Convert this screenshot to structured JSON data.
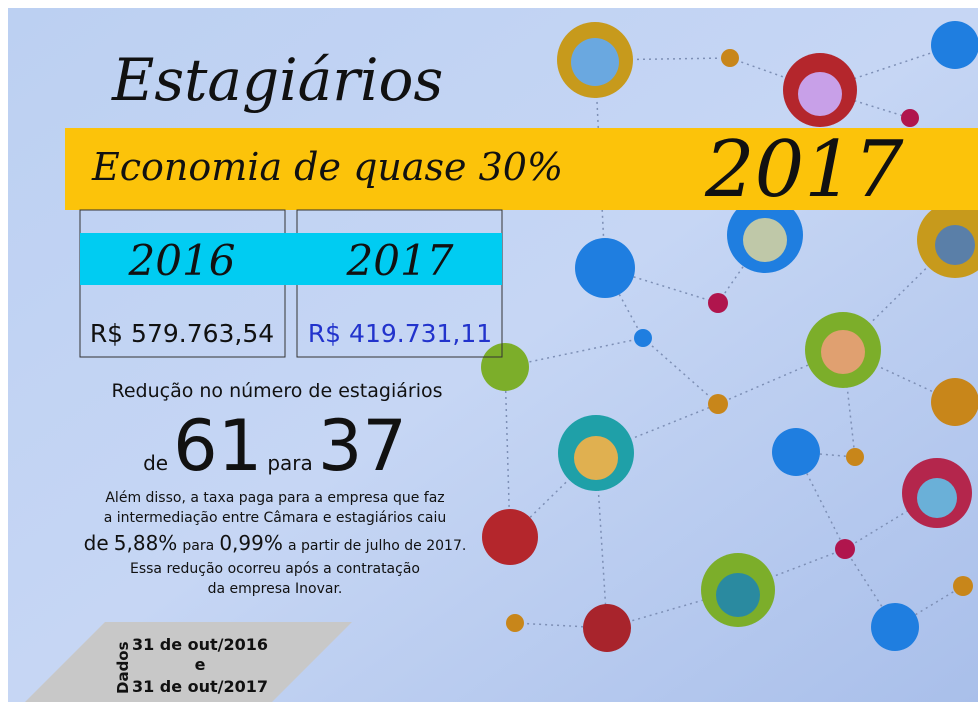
{
  "header": {
    "title": "Estagiários",
    "subtitle": "Economia de quase 30%",
    "year": "2017"
  },
  "table": {
    "columns": [
      "2016",
      "2017"
    ],
    "values": [
      "R$ 579.763,54",
      "R$ 419.731,11"
    ]
  },
  "reduction": {
    "heading": "Redução no número de estagiários",
    "from_word": "de",
    "from": 61,
    "to_word": "para",
    "to": 37
  },
  "note": {
    "lines": [
      "Além disso, a taxa paga para a empresa que faz",
      "a intermediação entre Câmara e estagiários caiu"
    ],
    "rate_line": {
      "from_word": "de",
      "from": "5,88%",
      "to_word": "para",
      "to": "0,99%",
      "rest": "a partir de julho de 2017."
    },
    "closing": [
      "Essa redução ocorreu após a contratação",
      "da empresa Inovar."
    ]
  },
  "source": {
    "label": "Dados",
    "lines": [
      "31 de out/2016",
      "e",
      "31 de out/2017"
    ]
  }
}
